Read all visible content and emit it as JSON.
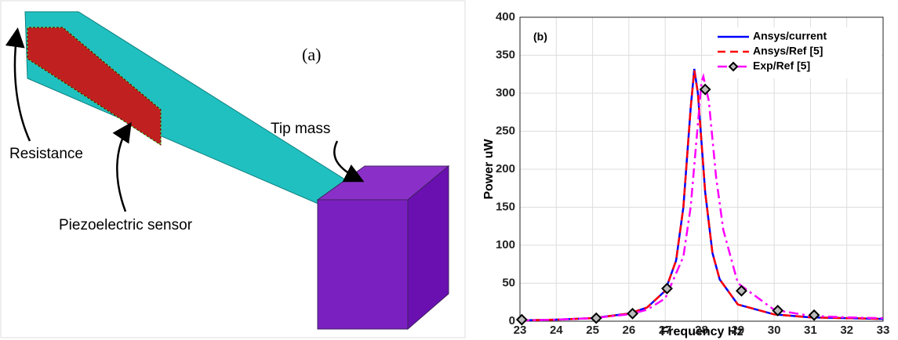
{
  "panel_a": {
    "label": "(a)",
    "annotations": [
      "Tip mass",
      "Resistance",
      "Piezoelectric sensor"
    ]
  },
  "chart_data": {
    "type": "line",
    "title": "(b)",
    "x_label": "Frequency Hz",
    "y_label": "Power uW",
    "xlim": [
      23,
      33
    ],
    "xticks": [
      23,
      24,
      25,
      26,
      27,
      28,
      29,
      30,
      31,
      32,
      33
    ],
    "ylim": [
      0,
      400
    ],
    "yticks": [
      0,
      50,
      100,
      150,
      200,
      250,
      300,
      350,
      400
    ],
    "grid": true,
    "legend": "upper right",
    "series": [
      {
        "name": "Ansys/current",
        "color": "#0000ff",
        "line_style": "solid",
        "x": [
          23,
          24,
          25,
          26,
          26.5,
          27,
          27.3,
          27.5,
          27.7,
          27.8,
          27.9,
          28.1,
          28.3,
          28.5,
          29,
          30,
          31,
          32,
          33
        ],
        "values": [
          1,
          2,
          4,
          10,
          18,
          40,
          80,
          150,
          280,
          332,
          300,
          170,
          90,
          55,
          22,
          9,
          5,
          4,
          3
        ]
      },
      {
        "name": "Ansys/Ref [5]",
        "color": "#ff0000",
        "line_style": "dashed",
        "x": [
          23,
          24,
          25,
          26,
          26.5,
          27,
          27.3,
          27.5,
          27.7,
          27.8,
          27.9,
          28.1,
          28.3,
          28.5,
          29,
          30,
          31,
          32,
          33
        ],
        "values": [
          1,
          2,
          4,
          10,
          18,
          40,
          80,
          150,
          280,
          330,
          300,
          170,
          90,
          55,
          22,
          9,
          5,
          4,
          3
        ]
      },
      {
        "name": "Exp/Ref [5]",
        "color": "#ff00ff",
        "line_style": "dashdot",
        "x": [
          23,
          24,
          25,
          26,
          26.5,
          27,
          27.5,
          27.7,
          27.9,
          28.0,
          28.05,
          28.2,
          28.4,
          28.6,
          29,
          30,
          31,
          32,
          33
        ],
        "values": [
          1,
          2,
          4,
          9,
          15,
          30,
          85,
          150,
          260,
          315,
          322,
          290,
          190,
          120,
          50,
          15,
          7,
          5,
          4
        ],
        "marker_x": [
          23.05,
          25.1,
          26.1,
          27.05,
          28.1,
          29.1,
          30.1,
          31.1
        ],
        "marker_values": [
          2,
          4,
          10,
          43,
          305,
          40,
          14,
          8
        ]
      }
    ]
  }
}
